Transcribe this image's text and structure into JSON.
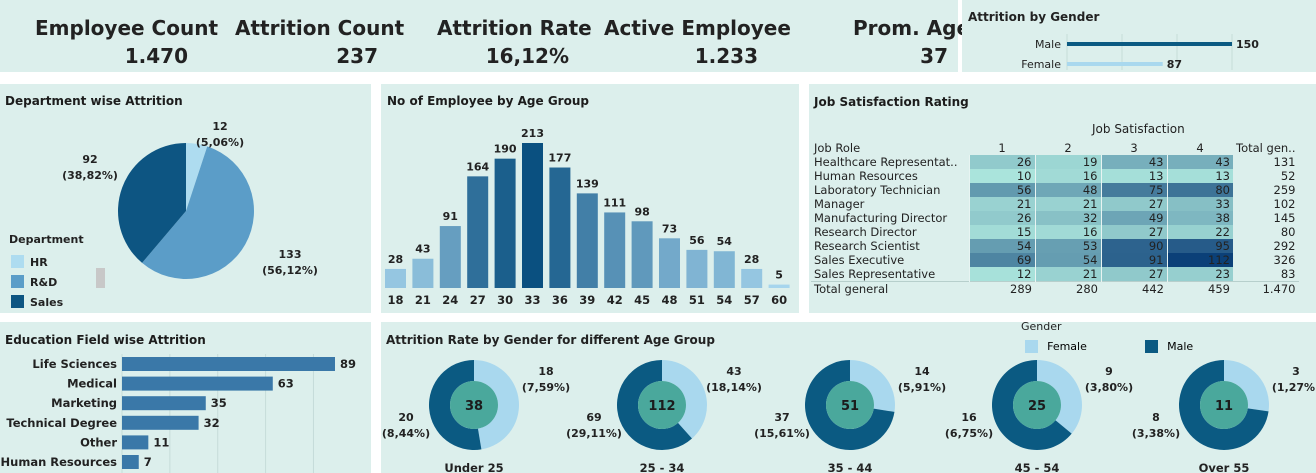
{
  "kpis": [
    {
      "label": "Employee Count",
      "value": "1.470"
    },
    {
      "label": "Attrition Count",
      "value": "237"
    },
    {
      "label": "Attrition Rate",
      "value": "16,12%"
    },
    {
      "label": "Active Employee",
      "value": "1.233"
    },
    {
      "label": "Prom. Age",
      "value": "37"
    }
  ],
  "gender_chart": {
    "title": "Attrition by Gender",
    "rows": [
      {
        "label": "Male",
        "value": 150,
        "color": "#0b5a82"
      },
      {
        "label": "Female",
        "value": 87,
        "color": "#a9d8ee"
      }
    ]
  },
  "dept_chart": {
    "title": "Department wise Attrition",
    "legend_title": "Department",
    "slices": [
      {
        "name": "HR",
        "value": 12,
        "pct": "(5,06%)",
        "color": "#aedcf0"
      },
      {
        "name": "R&D",
        "value": 133,
        "pct": "(56,12%)",
        "color": "#5b9dc8"
      },
      {
        "name": "Sales",
        "value": 92,
        "pct": "(38,82%)",
        "color": "#0d5582"
      }
    ]
  },
  "age_chart": {
    "title": "No of Employee by Age Group",
    "categories": [
      "18",
      "21",
      "24",
      "27",
      "30",
      "33",
      "36",
      "39",
      "42",
      "45",
      "48",
      "51",
      "54",
      "57",
      "60"
    ],
    "values": [
      28,
      43,
      91,
      164,
      190,
      213,
      177,
      139,
      111,
      98,
      73,
      56,
      54,
      28,
      5
    ]
  },
  "job_sat": {
    "title": "Job Satisfaction Rating",
    "column_group": "Job Satisfaction",
    "row_header": "Job Role",
    "columns": [
      "1",
      "2",
      "3",
      "4"
    ],
    "total_label": "Total gen..",
    "rows": [
      {
        "role": "Healthcare Representat..",
        "vals": [
          "26",
          "19",
          "43",
          "43"
        ],
        "total": "131"
      },
      {
        "role": "Human Resources",
        "vals": [
          "10",
          "16",
          "13",
          "13"
        ],
        "total": "52"
      },
      {
        "role": "Laboratory Technician",
        "vals": [
          "56",
          "48",
          "75",
          "80"
        ],
        "total": "259"
      },
      {
        "role": "Manager",
        "vals": [
          "21",
          "21",
          "27",
          "33"
        ],
        "total": "102"
      },
      {
        "role": "Manufacturing Director",
        "vals": [
          "26",
          "32",
          "49",
          "38"
        ],
        "total": "145"
      },
      {
        "role": "Research Director",
        "vals": [
          "15",
          "16",
          "27",
          "22"
        ],
        "total": "80"
      },
      {
        "role": "Research Scientist",
        "vals": [
          "54",
          "53",
          "90",
          "95"
        ],
        "total": "292"
      },
      {
        "role": "Sales Executive",
        "vals": [
          "69",
          "54",
          "91",
          "112"
        ],
        "total": "326"
      },
      {
        "role": "Sales Representative",
        "vals": [
          "12",
          "21",
          "27",
          "23"
        ],
        "total": "83"
      }
    ],
    "footer": {
      "role": "Total general",
      "vals": [
        "289",
        "280",
        "442",
        "459"
      ],
      "total": "1.470"
    }
  },
  "edu_chart": {
    "title": "Education Field wise Attrition",
    "categories": [
      "Life Sciences",
      "Medical",
      "Marketing",
      "Technical Degree",
      "Other",
      "Human Resources"
    ],
    "values": [
      89,
      63,
      35,
      32,
      11,
      7
    ],
    "color": "#3a78a8"
  },
  "gender_age_chart": {
    "title": "Attrition Rate by Gender for different Age Group",
    "legend_title": "Gender",
    "legend": [
      {
        "name": "Female",
        "color": "#a9d8ee"
      },
      {
        "name": "Male",
        "color": "#0b5a82"
      }
    ],
    "groups": [
      {
        "label": "Under 25",
        "total": "38",
        "female": 18,
        "female_pct": "(7,59%)",
        "male": 20,
        "male_pct": "(8,44%)"
      },
      {
        "label": "25 - 34",
        "total": "112",
        "female": 43,
        "female_pct": "(18,14%)",
        "male": 69,
        "male_pct": "(29,11%)"
      },
      {
        "label": "35 - 44",
        "total": "51",
        "female": 14,
        "female_pct": "(5,91%)",
        "male": 37,
        "male_pct": "(15,61%)"
      },
      {
        "label": "45 - 54",
        "total": "25",
        "female": 9,
        "female_pct": "(3,80%)",
        "male": 16,
        "male_pct": "(6,75%)"
      },
      {
        "label": "Over 55",
        "total": "11",
        "female": 3,
        "female_pct": "(1,27%)",
        "male": 8,
        "male_pct": "(3,38%)"
      }
    ]
  }
}
